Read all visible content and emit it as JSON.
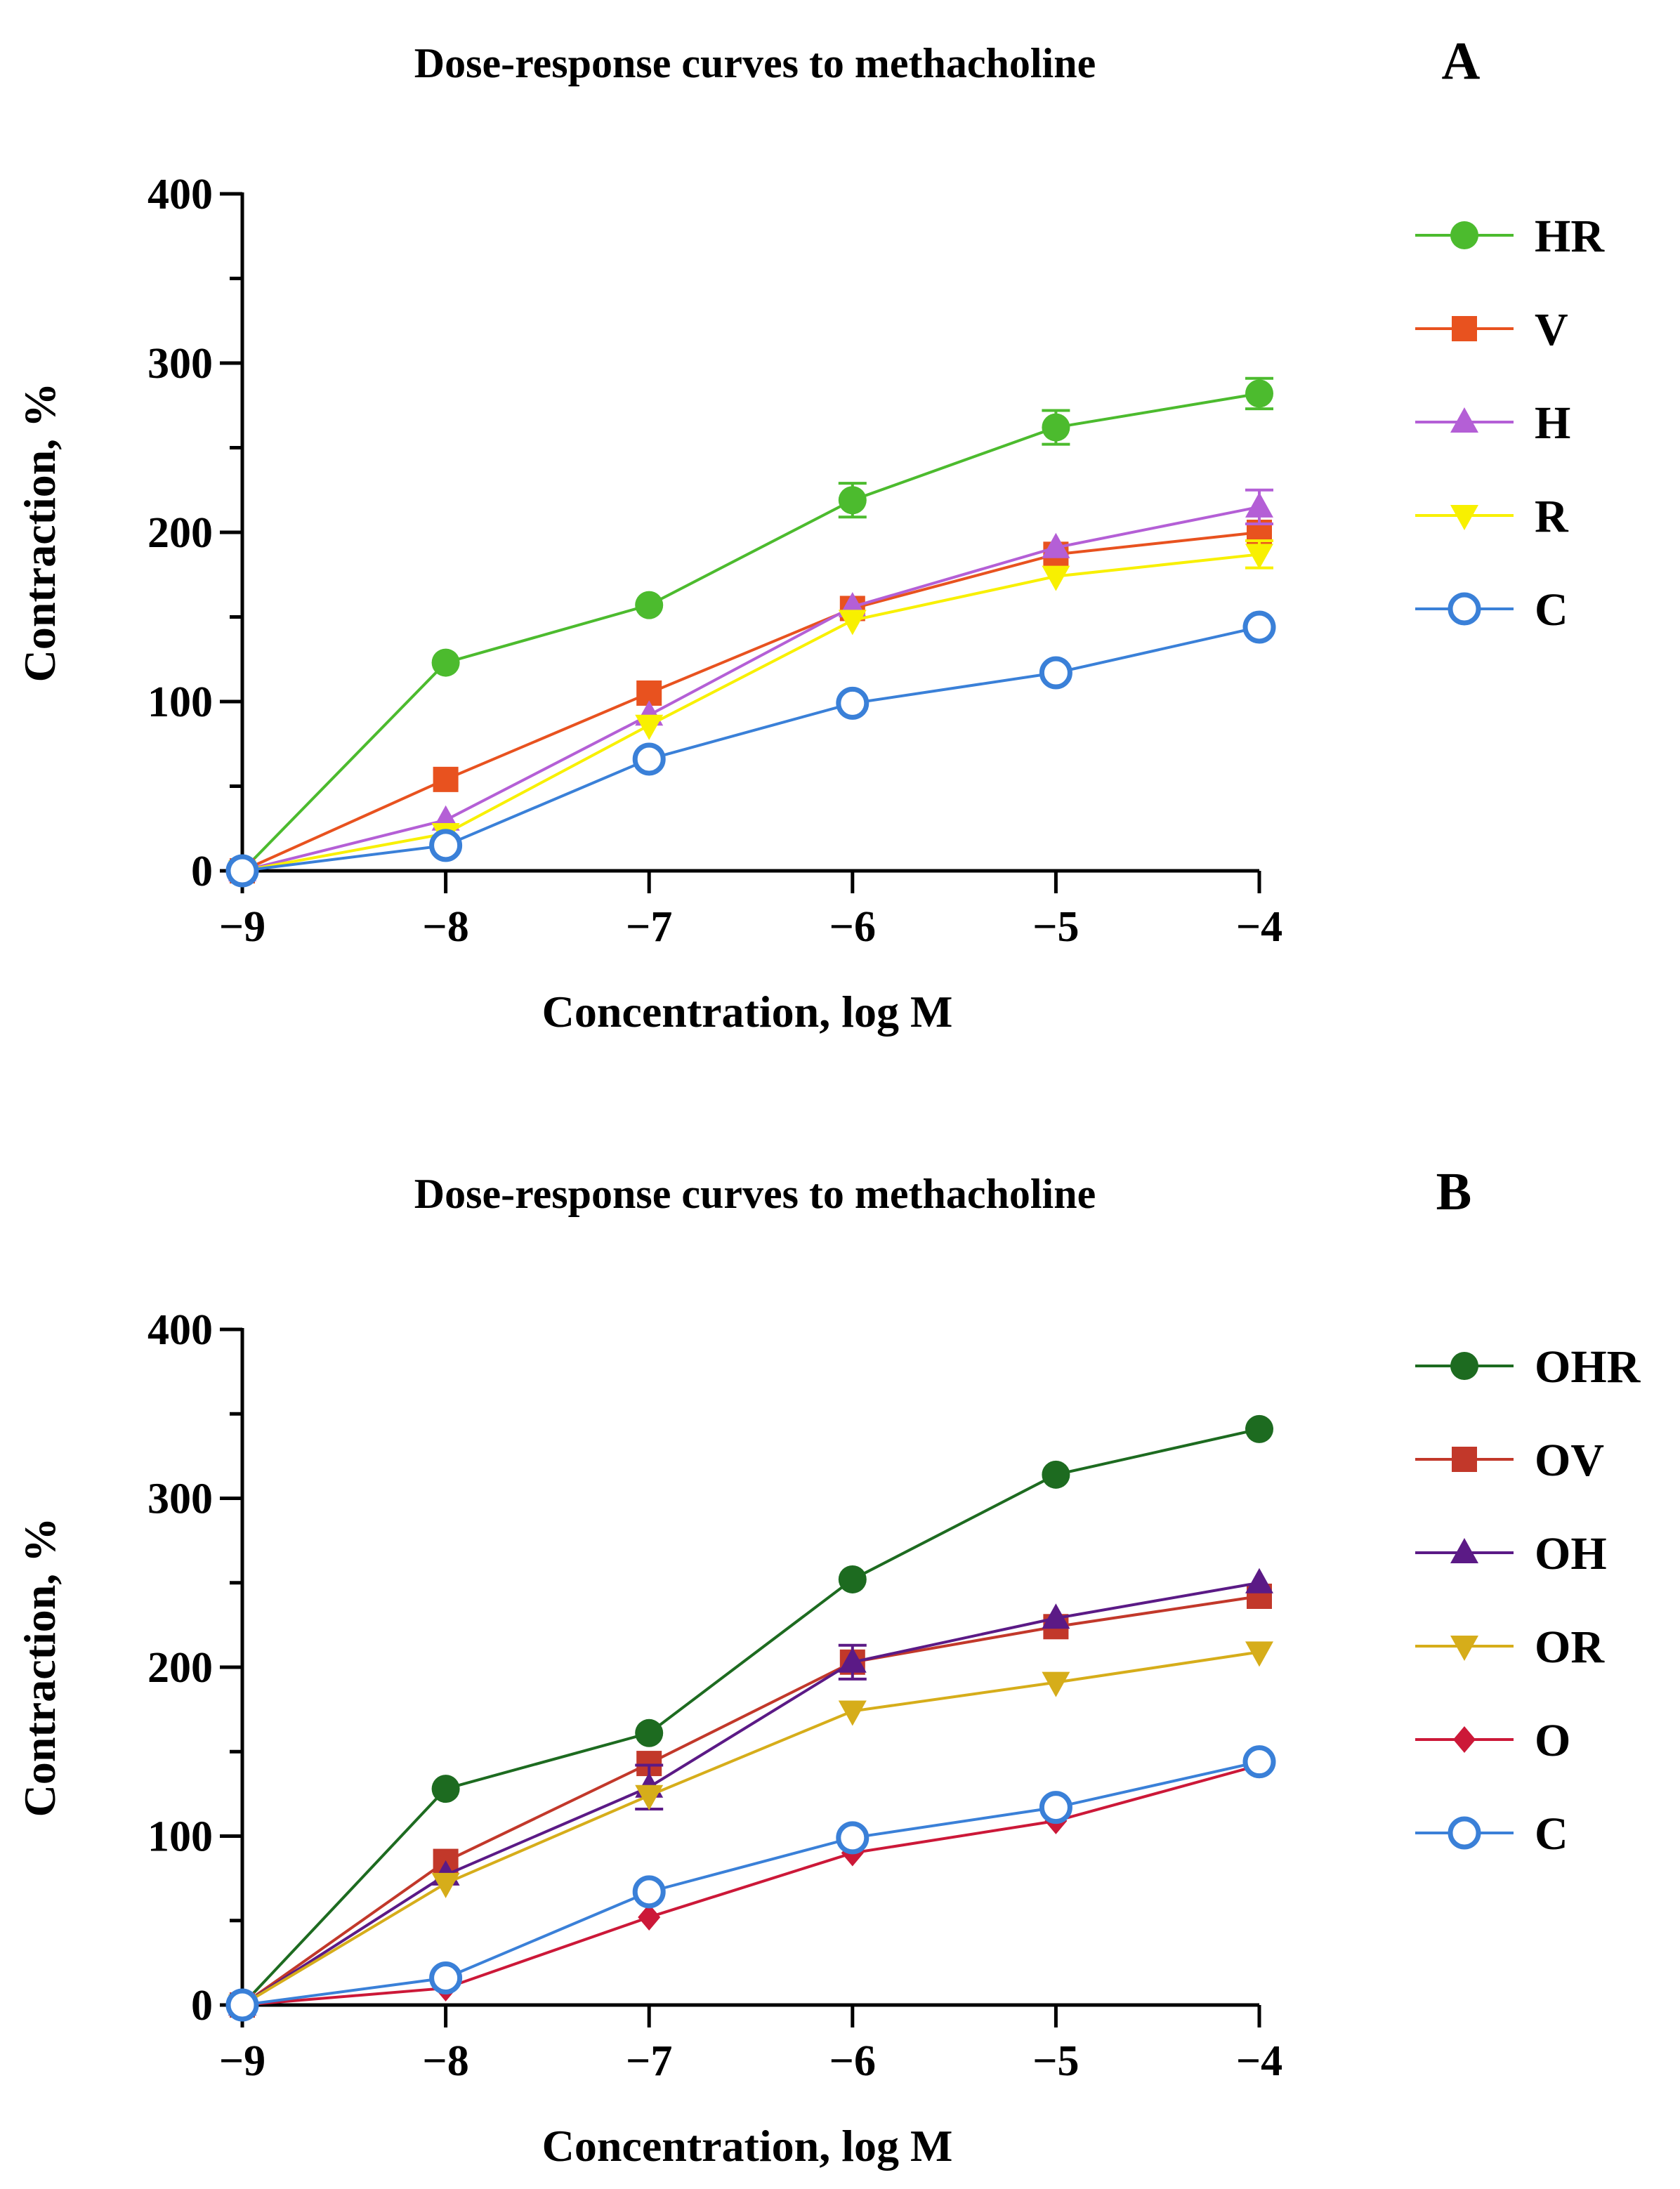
{
  "chart_data": [
    {
      "type": "line",
      "panel_label": "A",
      "title": "Dose-response curves to methacholine",
      "xlabel": "Concentration, log M",
      "ylabel": "Contraction, %",
      "xlim": [
        -9,
        -4
      ],
      "ylim": [
        0,
        400
      ],
      "x_ticks": [
        "−9",
        "−8",
        "−7",
        "−6",
        "−5",
        "−4"
      ],
      "y_ticks": [
        "0",
        "100",
        "200",
        "300",
        "400"
      ],
      "x": [
        -9,
        -8,
        -7,
        -6,
        -5,
        -4
      ],
      "legend_position": "right",
      "series": [
        {
          "name": "HR",
          "color": "#4cbb2e",
          "marker": "circle",
          "values": [
            0,
            123,
            157,
            219,
            262,
            282
          ],
          "errors": [
            0,
            0,
            0,
            10,
            10,
            9
          ]
        },
        {
          "name": "V",
          "color": "#e8521f",
          "marker": "square",
          "values": [
            0,
            54,
            105,
            155,
            187,
            200
          ],
          "errors": [
            0,
            0,
            0,
            0,
            0,
            0
          ]
        },
        {
          "name": "H",
          "color": "#b45fd6",
          "marker": "triangle-up",
          "values": [
            0,
            30,
            92,
            156,
            191,
            215
          ],
          "errors": [
            0,
            0,
            0,
            0,
            0,
            10
          ]
        },
        {
          "name": "R",
          "color": "#f8f000",
          "marker": "triangle-down",
          "values": [
            0,
            22,
            86,
            148,
            174,
            187
          ],
          "errors": [
            0,
            0,
            0,
            0,
            0,
            8
          ]
        },
        {
          "name": "C",
          "color": "#3a80d8",
          "marker": "open-circle",
          "values": [
            0,
            15,
            66,
            99,
            117,
            144
          ],
          "errors": [
            0,
            0,
            0,
            0,
            0,
            0
          ]
        }
      ]
    },
    {
      "type": "line",
      "panel_label": "B",
      "title": "Dose-response curves to methacholine",
      "xlabel": "Concentration, log M",
      "ylabel": "Contraction, %",
      "xlim": [
        -9,
        -4
      ],
      "ylim": [
        0,
        400
      ],
      "x_ticks": [
        "−9",
        "−8",
        "−7",
        "−6",
        "−5",
        "−4"
      ],
      "y_ticks": [
        "0",
        "100",
        "200",
        "300",
        "400"
      ],
      "x": [
        -9,
        -8,
        -7,
        -6,
        -5,
        -4
      ],
      "legend_position": "right",
      "series": [
        {
          "name": "OHR",
          "color": "#1d6b20",
          "marker": "circle",
          "values": [
            0,
            128,
            161,
            252,
            314,
            341
          ],
          "errors": [
            0,
            0,
            0,
            0,
            0,
            0
          ]
        },
        {
          "name": "OV",
          "color": "#c2382a",
          "marker": "square",
          "values": [
            0,
            85,
            143,
            203,
            224,
            242
          ],
          "errors": [
            0,
            0,
            0,
            0,
            0,
            0
          ]
        },
        {
          "name": "OH",
          "color": "#5b1a86",
          "marker": "triangle-up",
          "values": [
            0,
            77,
            129,
            203,
            229,
            250
          ],
          "errors": [
            0,
            0,
            13,
            10,
            0,
            0
          ]
        },
        {
          "name": "OR",
          "color": "#d6ad1a",
          "marker": "triangle-down",
          "values": [
            0,
            72,
            124,
            174,
            191,
            209
          ],
          "errors": [
            0,
            0,
            0,
            0,
            0,
            0
          ]
        },
        {
          "name": "O",
          "color": "#cc1838",
          "marker": "diamond",
          "values": [
            0,
            10,
            52,
            90,
            109,
            142
          ],
          "errors": [
            0,
            0,
            0,
            0,
            0,
            0
          ]
        },
        {
          "name": "C",
          "color": "#3a80d8",
          "marker": "open-circle",
          "values": [
            0,
            16,
            67,
            99,
            117,
            144
          ],
          "errors": [
            0,
            0,
            0,
            0,
            0,
            0
          ]
        }
      ]
    }
  ]
}
